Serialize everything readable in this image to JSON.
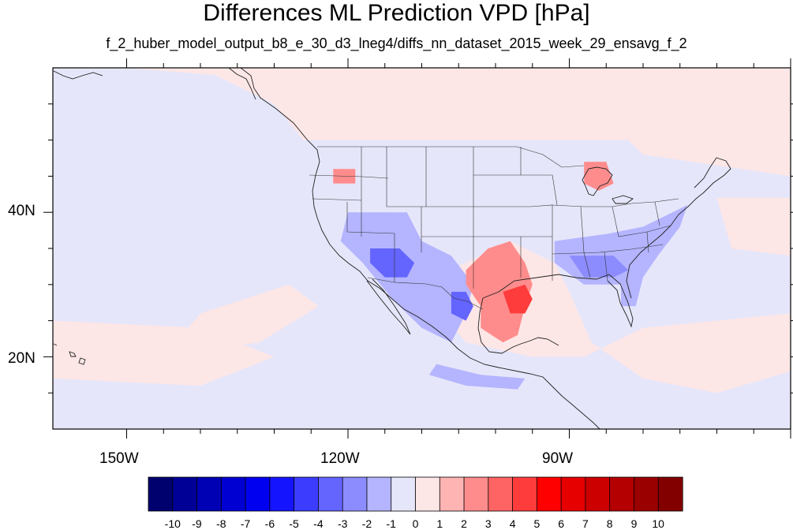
{
  "title": "Differences ML Prediction VPD [hPa]",
  "subtitle": "f_2_huber_model_output_b8_e_30_d3_lneg4/diffs_nn_dataset_2015_week_29_ensavg_f_2",
  "axes": {
    "lat_labels": [
      "40N",
      "20N"
    ],
    "lon_labels": [
      "150W",
      "120W",
      "90W"
    ]
  },
  "colorbar": {
    "labels": [
      "-10",
      "-9",
      "-8",
      "-7",
      "-6",
      "-5",
      "-4",
      "-3",
      "-2",
      "-1",
      "0",
      "1",
      "2",
      "3",
      "4",
      "5",
      "6",
      "7",
      "8",
      "9",
      "10"
    ],
    "colors": [
      "#00006e",
      "#000096",
      "#0000b4",
      "#0000d2",
      "#0000f0",
      "#1414ff",
      "#3c3cff",
      "#6464ff",
      "#8c8cff",
      "#b4b4ff",
      "#e6e6fa",
      "#fde6e6",
      "#ffb4b4",
      "#ff8c8c",
      "#ff6464",
      "#ff3c3c",
      "#ff0000",
      "#e60000",
      "#cd0000",
      "#b40000",
      "#9b0000",
      "#820000"
    ]
  },
  "map_data": {
    "type": "filled-contour-map",
    "projection": "cylindrical-equidistant",
    "lon_range": [
      -160,
      -60
    ],
    "lat_range": [
      10,
      60
    ],
    "base_color": "#e6e6fa",
    "regions": [
      {
        "label": "positive",
        "value": 0.5,
        "pts": [
          [
            -160,
            60
          ],
          [
            -60,
            60
          ],
          [
            -60,
            45
          ],
          [
            -80,
            48
          ],
          [
            -82,
            50
          ],
          [
            -95,
            50
          ],
          [
            -110,
            50
          ],
          [
            -120,
            50
          ],
          [
            -126,
            50
          ],
          [
            -130,
            55
          ],
          [
            -138,
            59
          ],
          [
            -150,
            60
          ]
        ]
      },
      {
        "label": "positive",
        "value": 0.5,
        "pts": [
          [
            -140,
            26
          ],
          [
            -128,
            30
          ],
          [
            -124,
            27
          ],
          [
            -132,
            22
          ],
          [
            -145,
            20
          ]
        ]
      },
      {
        "label": "positive",
        "value": 0.5,
        "pts": [
          [
            -160,
            25
          ],
          [
            -140,
            24
          ],
          [
            -130,
            20
          ],
          [
            -140,
            16
          ],
          [
            -160,
            17
          ]
        ]
      },
      {
        "label": "positive",
        "value": 0.5,
        "pts": [
          [
            -106,
            32
          ],
          [
            -98,
            36
          ],
          [
            -92,
            33
          ],
          [
            -90,
            29
          ],
          [
            -87,
            22
          ],
          [
            -80,
            17
          ],
          [
            -70,
            15
          ],
          [
            -60,
            18
          ],
          [
            -60,
            26
          ],
          [
            -80,
            24
          ],
          [
            -88,
            20
          ],
          [
            -95,
            20
          ],
          [
            -104,
            22
          ],
          [
            -109,
            28
          ]
        ]
      },
      {
        "label": "positive",
        "value": 0.5,
        "pts": [
          [
            -70,
            42
          ],
          [
            -60,
            42
          ],
          [
            -60,
            34
          ],
          [
            -68,
            35
          ]
        ]
      },
      {
        "label": "negative",
        "value": -1.5,
        "pts": [
          [
            -120,
            40
          ],
          [
            -112,
            40
          ],
          [
            -110,
            36
          ],
          [
            -106,
            34
          ],
          [
            -103,
            30
          ],
          [
            -104,
            26
          ],
          [
            -106,
            22
          ],
          [
            -110,
            24
          ],
          [
            -114,
            28
          ],
          [
            -118,
            33
          ],
          [
            -121,
            36
          ]
        ]
      },
      {
        "label": "negative",
        "value": -1.5,
        "pts": [
          [
            -92,
            36
          ],
          [
            -85,
            37
          ],
          [
            -80,
            38
          ],
          [
            -76,
            40
          ],
          [
            -74,
            41
          ],
          [
            -75,
            38
          ],
          [
            -78,
            34
          ],
          [
            -80,
            31
          ],
          [
            -81,
            27
          ],
          [
            -83,
            27
          ],
          [
            -83,
            30
          ],
          [
            -88,
            30
          ],
          [
            -92,
            33
          ]
        ]
      },
      {
        "label": "negative",
        "value": -1.5,
        "pts": [
          [
            -108,
            19
          ],
          [
            -102,
            17.5
          ],
          [
            -96,
            17
          ],
          [
            -97,
            15.5
          ],
          [
            -104,
            16
          ],
          [
            -109,
            17.5
          ]
        ]
      },
      {
        "label": "negative",
        "value": -3.5,
        "pts": [
          [
            -117,
            35
          ],
          [
            -113,
            35
          ],
          [
            -111,
            33
          ],
          [
            -112,
            31
          ],
          [
            -115,
            31
          ],
          [
            -117,
            33
          ]
        ]
      },
      {
        "label": "negative",
        "value": -3.5,
        "pts": [
          [
            -106,
            29
          ],
          [
            -104,
            29
          ],
          [
            -103,
            27
          ],
          [
            -104,
            25
          ],
          [
            -106,
            26
          ]
        ]
      },
      {
        "label": "negative",
        "value": -2.5,
        "pts": [
          [
            -90,
            34
          ],
          [
            -84,
            34
          ],
          [
            -82,
            32
          ],
          [
            -84,
            31
          ],
          [
            -88,
            31
          ]
        ]
      },
      {
        "label": "positive",
        "value": 2.5,
        "pts": [
          [
            -101,
            35
          ],
          [
            -98,
            36
          ],
          [
            -96,
            33
          ],
          [
            -95,
            30
          ],
          [
            -96,
            27
          ],
          [
            -97,
            23
          ],
          [
            -99,
            22
          ],
          [
            -102,
            24
          ],
          [
            -102,
            27
          ],
          [
            -104,
            30
          ],
          [
            -104,
            32
          ]
        ]
      },
      {
        "label": "positive",
        "value": 4.5,
        "pts": [
          [
            -99,
            29
          ],
          [
            -96,
            30
          ],
          [
            -95,
            28
          ],
          [
            -96,
            26
          ],
          [
            -98,
            26
          ]
        ]
      },
      {
        "label": "positive",
        "value": 2.5,
        "pts": [
          [
            -88,
            47
          ],
          [
            -85,
            47
          ],
          [
            -84,
            44
          ],
          [
            -86,
            43
          ],
          [
            -88,
            44
          ]
        ]
      },
      {
        "label": "positive",
        "value": 2.5,
        "pts": [
          [
            -122,
            46
          ],
          [
            -119,
            46
          ],
          [
            -119,
            44
          ],
          [
            -122,
            44
          ]
        ]
      }
    ]
  }
}
